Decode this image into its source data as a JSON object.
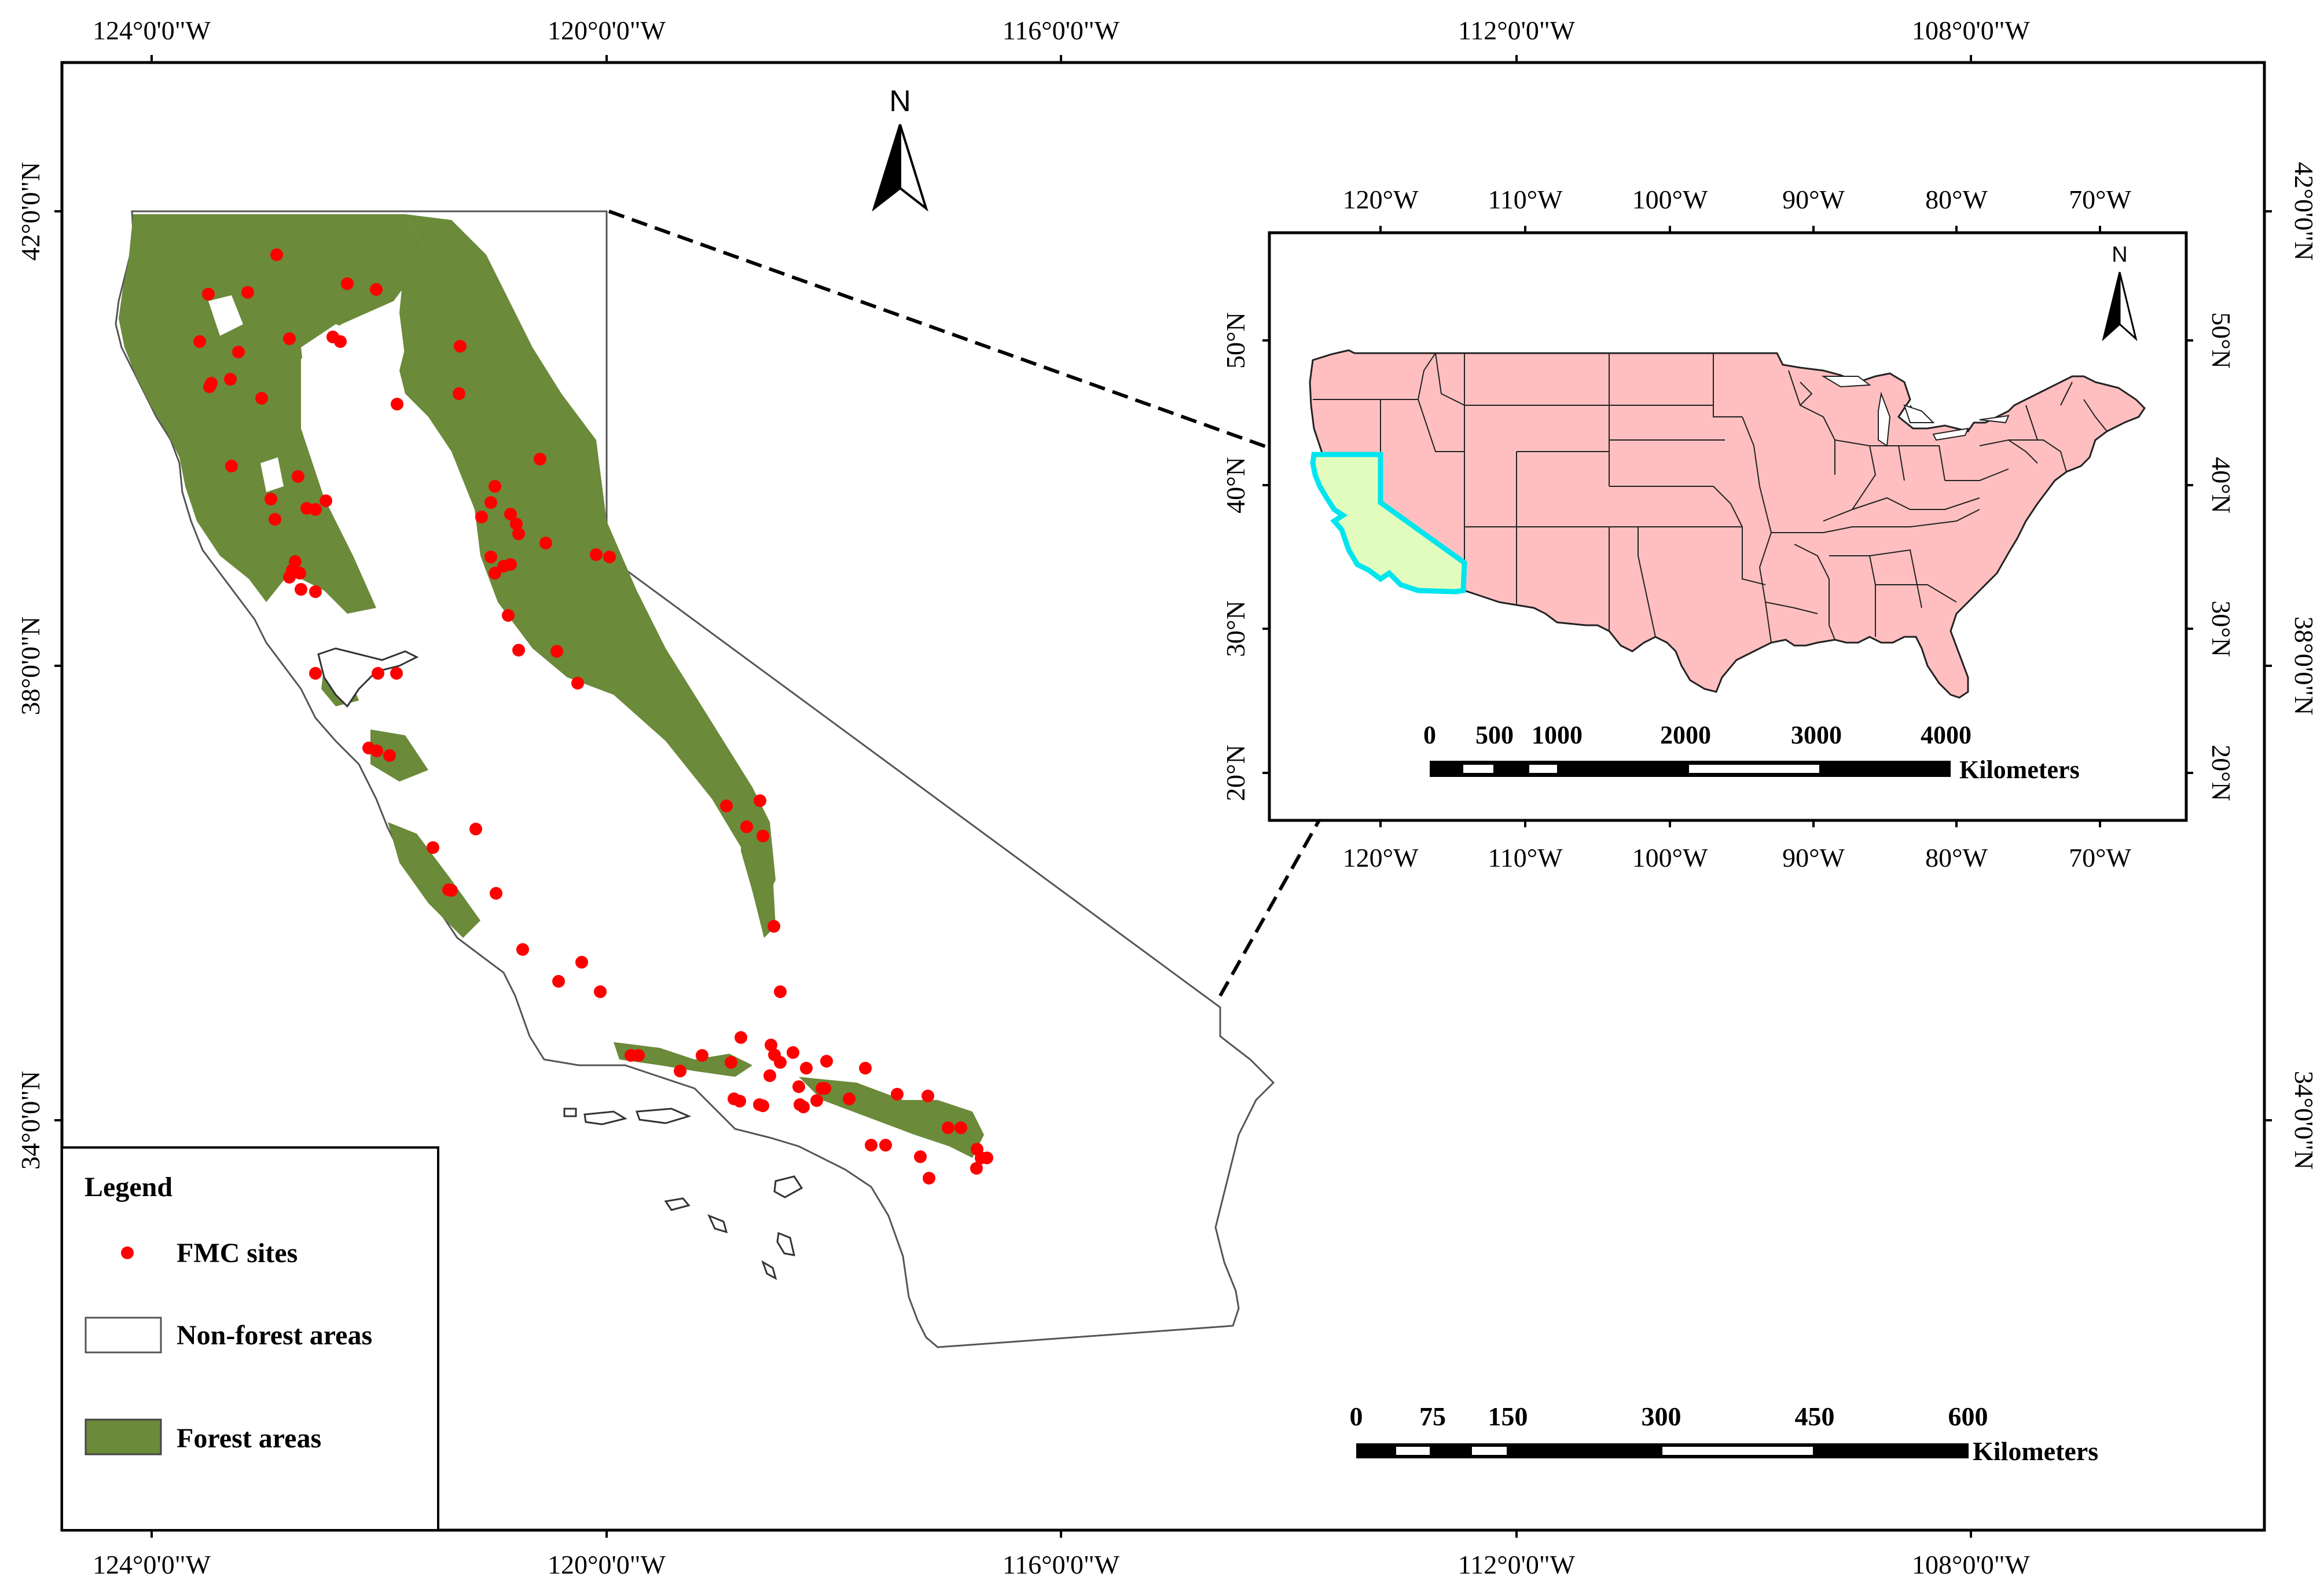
{
  "main_map": {
    "top_ticks": [
      "124°0'0\"W",
      "120°0'0\"W",
      "116°0'0\"W",
      "112°0'0\"W",
      "108°0'0\"W"
    ],
    "bottom_ticks": [
      "124°0'0\"W",
      "120°0'0\"W",
      "116°0'0\"W",
      "112°0'0\"W",
      "108°0'0\"W"
    ],
    "left_ticks": [
      "42°0'0\"N",
      "38°0'0\"N",
      "34°0'0\"N"
    ],
    "right_ticks": [
      "42°0'0\"N",
      "38°0'0\"N",
      "34°0'0\"N"
    ],
    "north_label": "N",
    "scale": {
      "labels": [
        "0",
        "75",
        "150",
        "300",
        "450",
        "600"
      ],
      "unit": "Kilometers"
    },
    "colors": {
      "forest": "#6b8a3a",
      "fmc_site": "#ff0000",
      "outline": "#000000"
    }
  },
  "legend": {
    "title": "Legend",
    "items": [
      {
        "label": "FMC sites",
        "symbol": "red-dot"
      },
      {
        "label": "Non-forest areas",
        "symbol": "white-box"
      },
      {
        "label": "Forest areas",
        "symbol": "green-box"
      }
    ]
  },
  "inset_map": {
    "top_ticks": [
      "120°W",
      "110°W",
      "100°W",
      "90°W",
      "80°W",
      "70°W"
    ],
    "bottom_ticks": [
      "120°W",
      "110°W",
      "100°W",
      "90°W",
      "80°W",
      "70°W"
    ],
    "left_ticks": [
      "50°N",
      "40°N",
      "30°N",
      "20°N"
    ],
    "right_ticks": [
      "50°N",
      "40°N",
      "30°N",
      "20°N"
    ],
    "north_label": "N",
    "scale": {
      "labels": [
        "0",
        "500",
        "1000",
        "2000",
        "3000",
        "4000"
      ],
      "unit": "Kilometers"
    },
    "colors": {
      "usa_fill": "#ffbfc0",
      "california_fill": "#e2fcbe",
      "california_border": "#00e5ee"
    }
  }
}
